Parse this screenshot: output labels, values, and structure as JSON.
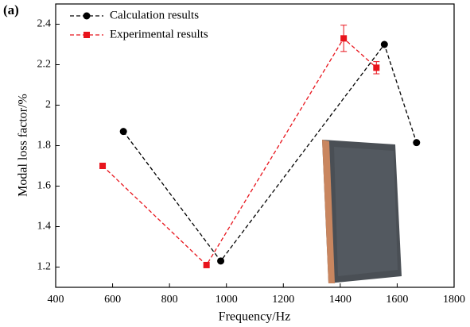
{
  "chart_data": {
    "type": "line",
    "panel_label": "(a)",
    "x_label": "Frequency/Hz",
    "y_label": "Modal loss factor/%",
    "xlim": [
      400,
      1800
    ],
    "xticks": [
      400,
      600,
      800,
      1000,
      1200,
      1400,
      1600,
      1800
    ],
    "ylim": [
      1.1,
      2.5
    ],
    "yticks": [
      1.2,
      1.4,
      1.6,
      1.8,
      2.0,
      2.2,
      2.4
    ],
    "series": [
      {
        "name": "Calculation results",
        "color": "#000000",
        "marker": "circle",
        "x": [
          638,
          980,
          1555,
          1668
        ],
        "values": [
          1.87,
          1.23,
          2.3,
          1.815
        ]
      },
      {
        "name": "Experimental results",
        "color": "#e8141c",
        "marker": "square",
        "x": [
          565,
          930,
          1412,
          1527
        ],
        "values": [
          1.7,
          1.21,
          2.33,
          2.185
        ],
        "errors": [
          null,
          null,
          0.065,
          0.03
        ]
      }
    ]
  }
}
